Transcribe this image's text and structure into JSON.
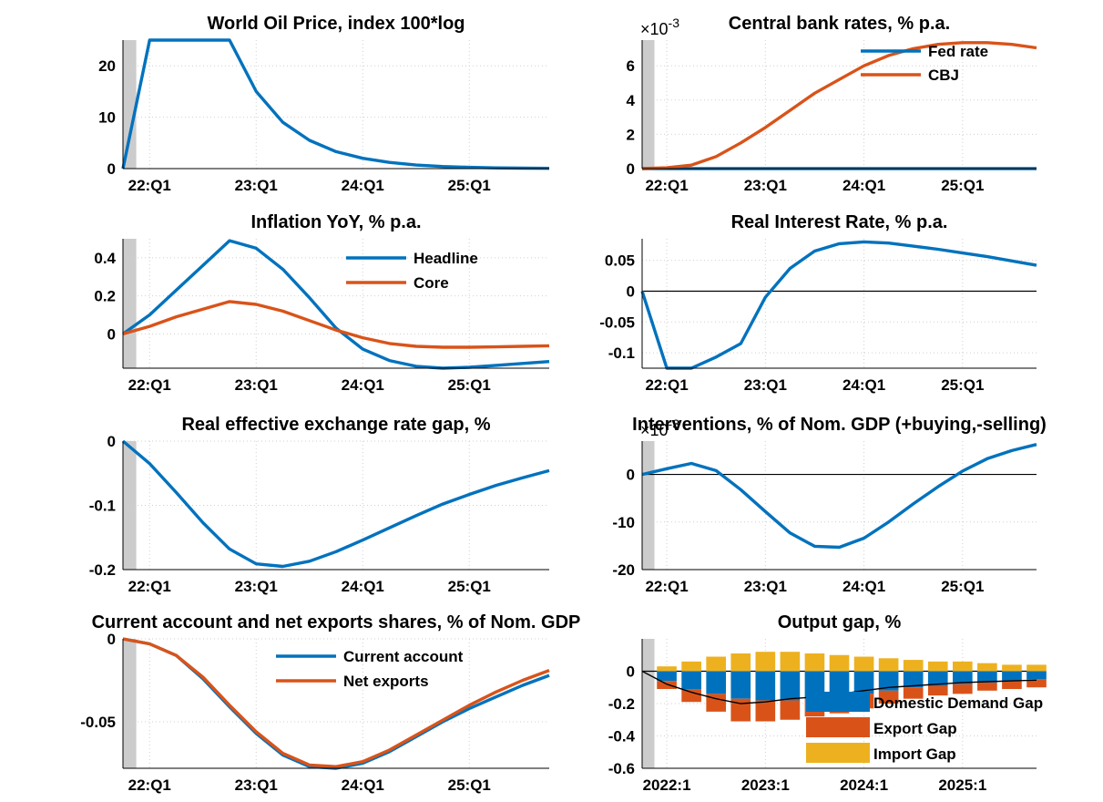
{
  "figure": {
    "background": "#ffffff",
    "colors": {
      "blue": "#0072BD",
      "orange": "#D95319",
      "yellow": "#EDB120",
      "shade": "#cccccc",
      "grid": "#cfcfcf",
      "zero_line": "#000000"
    }
  },
  "chart_data": [
    {
      "id": "oil",
      "type": "line",
      "title": "World Oil Price, index 100*log",
      "multiplier_text": "",
      "x_ticks": [
        "22:Q1",
        "23:Q1",
        "24:Q1",
        "25:Q1"
      ],
      "xlim": [
        0,
        16
      ],
      "x_tick_positions": [
        1,
        5,
        9,
        13
      ],
      "ylim": [
        0,
        25
      ],
      "y_ticks": [
        0,
        10,
        20
      ],
      "y_tick_labels": [
        "0",
        "10",
        "20"
      ],
      "zero_line": false,
      "shaded_until": 0.5,
      "grid": "dotted",
      "legend": [],
      "series": [
        {
          "color": "blue",
          "x": [
            0,
            1,
            2,
            3,
            4,
            5,
            6,
            7,
            8,
            9,
            10,
            11,
            12,
            13,
            14,
            15,
            16
          ],
          "values": [
            0,
            25,
            25,
            25,
            25,
            15,
            9,
            5.5,
            3.3,
            2.0,
            1.2,
            0.7,
            0.4,
            0.25,
            0.15,
            0.08,
            0.05
          ]
        }
      ]
    },
    {
      "id": "rates",
      "type": "line",
      "title": "Central bank rates, % p.a.",
      "multiplier_text": "×10",
      "multiplier_exp": "-3",
      "x_ticks": [
        "22:Q1",
        "23:Q1",
        "24:Q1",
        "25:Q1"
      ],
      "xlim": [
        0,
        16
      ],
      "x_tick_positions": [
        1,
        5,
        9,
        13
      ],
      "ylim": [
        0,
        7.5
      ],
      "y_ticks": [
        0,
        2,
        4,
        6
      ],
      "y_tick_labels": [
        "0",
        "2",
        "4",
        "6"
      ],
      "zero_line": false,
      "shaded_until": 0.5,
      "grid": "dotted",
      "legend": [
        {
          "label": "Fed rate",
          "color": "blue"
        },
        {
          "label": "CBJ",
          "color": "orange"
        }
      ],
      "series": [
        {
          "name": "Fed rate",
          "color": "blue",
          "x": [
            0,
            16
          ],
          "values": [
            0,
            0
          ]
        },
        {
          "name": "CBJ",
          "color": "orange",
          "x": [
            0,
            1,
            2,
            3,
            4,
            5,
            6,
            7,
            8,
            9,
            10,
            11,
            12,
            13,
            14,
            15,
            16
          ],
          "values": [
            0,
            0.05,
            0.2,
            0.7,
            1.5,
            2.4,
            3.4,
            4.4,
            5.2,
            6.0,
            6.6,
            7.0,
            7.25,
            7.35,
            7.35,
            7.25,
            7.05
          ]
        }
      ]
    },
    {
      "id": "inflation",
      "type": "line",
      "title": "Inflation YoY, % p.a.",
      "multiplier_text": "",
      "x_ticks": [
        "22:Q1",
        "23:Q1",
        "24:Q1",
        "25:Q1"
      ],
      "xlim": [
        0,
        16
      ],
      "x_tick_positions": [
        1,
        5,
        9,
        13
      ],
      "ylim": [
        -0.18,
        0.5
      ],
      "y_ticks": [
        0,
        0.2,
        0.4
      ],
      "y_tick_labels": [
        "0",
        "0.2",
        "0.4"
      ],
      "zero_line": false,
      "shaded_until": 0.5,
      "grid": "dotted",
      "legend": [
        {
          "label": "Headline",
          "color": "blue"
        },
        {
          "label": "Core",
          "color": "orange"
        }
      ],
      "series": [
        {
          "name": "Headline",
          "color": "blue",
          "x": [
            0,
            1,
            2,
            3,
            4,
            5,
            6,
            7,
            8,
            9,
            10,
            11,
            12,
            13,
            14,
            15,
            16
          ],
          "values": [
            0,
            0.1,
            0.23,
            0.36,
            0.49,
            0.45,
            0.34,
            0.19,
            0.03,
            -0.08,
            -0.14,
            -0.17,
            -0.18,
            -0.175,
            -0.165,
            -0.155,
            -0.145
          ]
        },
        {
          "name": "Core",
          "color": "orange",
          "x": [
            0,
            1,
            2,
            3,
            4,
            5,
            6,
            7,
            8,
            9,
            10,
            11,
            12,
            13,
            14,
            15,
            16
          ],
          "values": [
            0,
            0.04,
            0.09,
            0.13,
            0.17,
            0.155,
            0.12,
            0.07,
            0.02,
            -0.02,
            -0.05,
            -0.065,
            -0.07,
            -0.07,
            -0.068,
            -0.065,
            -0.062
          ]
        }
      ]
    },
    {
      "id": "real_rate",
      "type": "line",
      "title": "Real Interest Rate, % p.a.",
      "multiplier_text": "",
      "x_ticks": [
        "22:Q1",
        "23:Q1",
        "24:Q1",
        "25:Q1"
      ],
      "xlim": [
        0,
        16
      ],
      "x_tick_positions": [
        1,
        5,
        9,
        13
      ],
      "ylim": [
        -0.125,
        0.085
      ],
      "y_ticks": [
        -0.1,
        -0.05,
        0,
        0.05
      ],
      "y_tick_labels": [
        "-0.1",
        "-0.05",
        "0",
        "0.05"
      ],
      "zero_line": true,
      "shaded_until": 0,
      "grid": "dotted",
      "legend": [],
      "series": [
        {
          "color": "blue",
          "x": [
            0,
            1,
            2,
            3,
            4,
            5,
            6,
            7,
            8,
            9,
            10,
            11,
            12,
            13,
            14,
            15,
            16
          ],
          "values": [
            0,
            -0.127,
            -0.125,
            -0.107,
            -0.085,
            -0.01,
            0.037,
            0.065,
            0.077,
            0.08,
            0.078,
            0.073,
            0.068,
            0.062,
            0.056,
            0.049,
            0.042
          ]
        }
      ]
    },
    {
      "id": "reer",
      "type": "line",
      "title": "Real effective exchange rate gap, %",
      "multiplier_text": "",
      "x_ticks": [
        "22:Q1",
        "23:Q1",
        "24:Q1",
        "25:Q1"
      ],
      "xlim": [
        0,
        16
      ],
      "x_tick_positions": [
        1,
        5,
        9,
        13
      ],
      "ylim": [
        -0.2,
        0
      ],
      "y_ticks": [
        -0.2,
        -0.1,
        0
      ],
      "y_tick_labels": [
        "-0.2",
        "-0.1",
        "0"
      ],
      "zero_line": false,
      "shaded_until": 0.5,
      "grid": "dotted",
      "legend": [],
      "series": [
        {
          "color": "blue",
          "x": [
            0,
            1,
            2,
            3,
            4,
            5,
            6,
            7,
            8,
            9,
            10,
            11,
            12,
            13,
            14,
            15,
            16
          ],
          "values": [
            0,
            -0.035,
            -0.08,
            -0.127,
            -0.168,
            -0.191,
            -0.195,
            -0.187,
            -0.172,
            -0.154,
            -0.135,
            -0.116,
            -0.098,
            -0.083,
            -0.069,
            -0.057,
            -0.046
          ]
        }
      ]
    },
    {
      "id": "interventions",
      "type": "line",
      "title": "Interventions, % of Nom. GDP (+buying,-selling)",
      "multiplier_text": "×10",
      "multiplier_exp": "-3",
      "x_ticks": [
        "22:Q1",
        "23:Q1",
        "24:Q1",
        "25:Q1"
      ],
      "xlim": [
        0,
        16
      ],
      "x_tick_positions": [
        1,
        5,
        9,
        13
      ],
      "ylim": [
        -20,
        7
      ],
      "y_ticks": [
        -20,
        -10,
        0
      ],
      "y_tick_labels": [
        "-20",
        "-10",
        "0"
      ],
      "zero_line": true,
      "shaded_until": 0.5,
      "grid": "dotted",
      "legend": [],
      "series": [
        {
          "color": "blue",
          "x": [
            0,
            1,
            2,
            3,
            4,
            5,
            6,
            7,
            8,
            9,
            10,
            11,
            12,
            13,
            14,
            15,
            16
          ],
          "values": [
            0,
            1.2,
            2.3,
            0.8,
            -3.2,
            -7.8,
            -12.3,
            -15.1,
            -15.3,
            -13.4,
            -10,
            -6.2,
            -2.6,
            0.7,
            3.3,
            5.0,
            6.3
          ]
        }
      ]
    },
    {
      "id": "current_account",
      "type": "line",
      "title": "Current account and net exports shares, % of Nom. GDP",
      "multiplier_text": "",
      "x_ticks": [
        "22:Q1",
        "23:Q1",
        "24:Q1",
        "25:Q1"
      ],
      "xlim": [
        0,
        16
      ],
      "x_tick_positions": [
        1,
        5,
        9,
        13
      ],
      "ylim": [
        -0.078,
        0
      ],
      "y_ticks": [
        -0.05,
        0
      ],
      "y_tick_labels": [
        "-0.05",
        "0"
      ],
      "zero_line": false,
      "shaded_until": 0.5,
      "grid": "dotted",
      "legend": [
        {
          "label": "Current account",
          "color": "blue"
        },
        {
          "label": "Net exports",
          "color": "orange"
        }
      ],
      "series": [
        {
          "name": "Current account",
          "color": "blue",
          "x": [
            0,
            1,
            2,
            3,
            4,
            5,
            6,
            7,
            8,
            9,
            10,
            11,
            12,
            13,
            14,
            15,
            16
          ],
          "values": [
            0,
            -0.003,
            -0.01,
            -0.024,
            -0.041,
            -0.057,
            -0.07,
            -0.077,
            -0.078,
            -0.075,
            -0.068,
            -0.059,
            -0.05,
            -0.042,
            -0.035,
            -0.028,
            -0.022
          ]
        },
        {
          "name": "Net exports",
          "color": "orange",
          "x": [
            0,
            1,
            2,
            3,
            4,
            5,
            6,
            7,
            8,
            9,
            10,
            11,
            12,
            13,
            14,
            15,
            16
          ],
          "values": [
            0,
            -0.003,
            -0.01,
            -0.023,
            -0.04,
            -0.056,
            -0.069,
            -0.076,
            -0.077,
            -0.074,
            -0.067,
            -0.058,
            -0.049,
            -0.04,
            -0.032,
            -0.025,
            -0.019
          ]
        }
      ]
    },
    {
      "id": "output_gap",
      "type": "bar",
      "title": "Output gap, %",
      "multiplier_text": "",
      "x_ticks": [
        "2022:1",
        "2023:1",
        "2024:1",
        "2025:1"
      ],
      "xlim": [
        0,
        16
      ],
      "x_tick_positions": [
        1,
        5,
        9,
        13
      ],
      "ylim": [
        -0.6,
        0.2
      ],
      "y_ticks": [
        -0.6,
        -0.4,
        -0.2,
        0
      ],
      "y_tick_labels": [
        "-0.6",
        "-0.4",
        "-0.2",
        "0"
      ],
      "zero_line": true,
      "shaded_until": 0.5,
      "grid": "dotted",
      "legend": [
        {
          "label": "Domestic Demand Gap",
          "color": "blue"
        },
        {
          "label": "Export Gap",
          "color": "orange"
        },
        {
          "label": "Import Gap",
          "color": "yellow"
        }
      ],
      "bar_x": [
        1,
        2,
        3,
        4,
        5,
        6,
        7,
        8,
        9,
        10,
        11,
        12,
        13,
        14,
        15,
        16
      ],
      "stacks": [
        {
          "name": "Domestic Demand Gap",
          "color": "blue",
          "values": [
            -0.06,
            -0.11,
            -0.14,
            -0.17,
            -0.18,
            -0.18,
            -0.17,
            -0.16,
            -0.14,
            -0.12,
            -0.1,
            -0.09,
            -0.08,
            -0.07,
            -0.06,
            -0.05
          ]
        },
        {
          "name": "Export Gap",
          "color": "orange",
          "values": [
            -0.05,
            -0.08,
            -0.11,
            -0.14,
            -0.13,
            -0.12,
            -0.11,
            -0.1,
            -0.09,
            -0.08,
            -0.07,
            -0.06,
            -0.06,
            -0.05,
            -0.05,
            -0.05
          ]
        },
        {
          "name": "Import Gap",
          "color": "yellow",
          "values": [
            0.03,
            0.06,
            0.09,
            0.11,
            0.12,
            0.12,
            0.11,
            0.1,
            0.09,
            0.08,
            0.07,
            0.06,
            0.06,
            0.05,
            0.04,
            0.04
          ]
        }
      ],
      "line": {
        "color": "black",
        "x": [
          0,
          1,
          2,
          3,
          4,
          5,
          6,
          7,
          8,
          9,
          10,
          11,
          12,
          13,
          14,
          15,
          16
        ],
        "values": [
          0,
          -0.08,
          -0.13,
          -0.17,
          -0.2,
          -0.19,
          -0.17,
          -0.16,
          -0.14,
          -0.12,
          -0.1,
          -0.09,
          -0.08,
          -0.07,
          -0.065,
          -0.06,
          -0.055
        ]
      }
    }
  ]
}
